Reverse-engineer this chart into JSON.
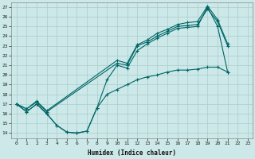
{
  "xlabel": "Humidex (Indice chaleur)",
  "bg_color": "#cce8e8",
  "grid_color": "#aacccc",
  "line_color": "#006666",
  "xlim": [
    -0.5,
    23.5
  ],
  "ylim": [
    13.5,
    27.5
  ],
  "xticks": [
    0,
    1,
    2,
    3,
    4,
    5,
    6,
    7,
    8,
    9,
    10,
    11,
    12,
    13,
    14,
    15,
    16,
    17,
    18,
    19,
    20,
    21,
    22,
    23
  ],
  "yticks": [
    14,
    15,
    16,
    17,
    18,
    19,
    20,
    21,
    22,
    23,
    24,
    25,
    26,
    27
  ],
  "line1_x": [
    0,
    1,
    2,
    3,
    4,
    5,
    6,
    7,
    8,
    9,
    10,
    11,
    12,
    13,
    14,
    15,
    16,
    17,
    18,
    19,
    20,
    21
  ],
  "line1_y": [
    17.0,
    16.2,
    17.0,
    16.0,
    14.8,
    14.1,
    14.0,
    14.2,
    16.6,
    19.5,
    21.0,
    20.7,
    22.5,
    23.2,
    23.8,
    24.3,
    24.8,
    24.9,
    25.0,
    27.0,
    25.0,
    20.3
  ],
  "line2_x": [
    0,
    1,
    2,
    3,
    10,
    11,
    12,
    13,
    14,
    15,
    16,
    17,
    18,
    19,
    20,
    21
  ],
  "line2_y": [
    17.0,
    16.5,
    17.2,
    16.2,
    21.2,
    21.0,
    23.0,
    23.4,
    24.0,
    24.5,
    25.0,
    25.1,
    25.2,
    26.8,
    25.5,
    23.0
  ],
  "line3_x": [
    0,
    1,
    2,
    3,
    10,
    11,
    12,
    13,
    14,
    15,
    16,
    17,
    18,
    19,
    20,
    21
  ],
  "line3_y": [
    17.0,
    16.5,
    17.3,
    16.3,
    21.5,
    21.2,
    23.1,
    23.6,
    24.3,
    24.7,
    25.2,
    25.4,
    25.5,
    27.1,
    25.7,
    23.2
  ],
  "bottom_line_x": [
    0,
    1,
    2,
    3,
    4,
    5,
    6,
    7,
    8,
    9,
    10,
    11,
    12,
    13,
    14,
    15,
    16,
    17,
    18,
    19,
    20,
    21
  ],
  "bottom_line_y": [
    17.0,
    16.2,
    17.0,
    16.0,
    14.8,
    14.1,
    14.0,
    14.2,
    16.6,
    18.0,
    18.5,
    19.0,
    19.5,
    19.8,
    20.0,
    20.3,
    20.5,
    20.5,
    20.6,
    20.8,
    20.8,
    20.3
  ]
}
